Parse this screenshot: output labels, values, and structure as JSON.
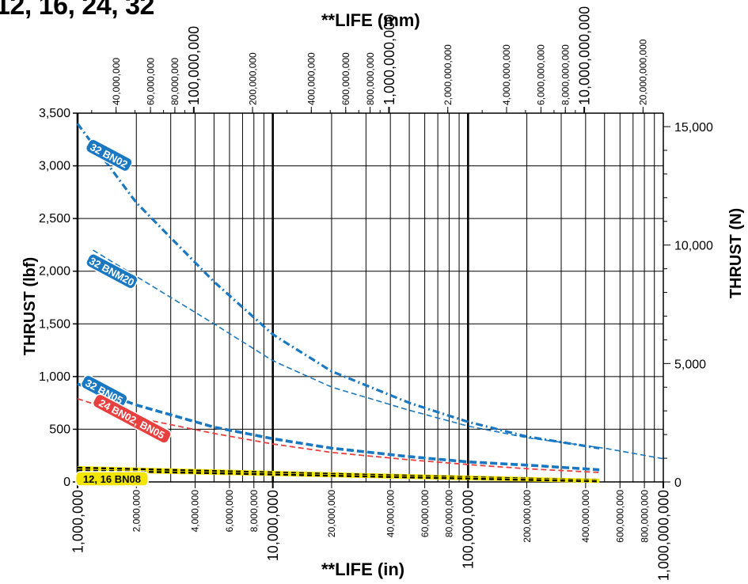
{
  "title_fragment": "12, 16, 24, 32",
  "colors": {
    "blue": "#1a78c2",
    "red": "#e8403f",
    "yellow": "#f2e600",
    "grid": "#000000"
  },
  "chart_data": {
    "type": "line",
    "x_scale": "log",
    "bottom_axis": {
      "title": "**LIFE (in)",
      "range": [
        1000000,
        1000000000
      ],
      "ticks": [
        {
          "value": 1000000,
          "label": "1,000,000",
          "major": true
        },
        {
          "value": 2000000,
          "label": "2,000,000",
          "major": false
        },
        {
          "value": 4000000,
          "label": "4,000,000",
          "major": false
        },
        {
          "value": 6000000,
          "label": "6,000,000",
          "major": false
        },
        {
          "value": 8000000,
          "label": "8,000,000",
          "major": false
        },
        {
          "value": 10000000,
          "label": "10,000,000",
          "major": true
        },
        {
          "value": 20000000,
          "label": "20,000,000",
          "major": false
        },
        {
          "value": 40000000,
          "label": "40,000,000",
          "major": false
        },
        {
          "value": 60000000,
          "label": "60,000,000",
          "major": false
        },
        {
          "value": 80000000,
          "label": "80,000,000",
          "major": false
        },
        {
          "value": 100000000,
          "label": "100,000,000",
          "major": true
        },
        {
          "value": 200000000,
          "label": "200,000,000",
          "major": false
        },
        {
          "value": 400000000,
          "label": "400,000,000",
          "major": false
        },
        {
          "value": 600000000,
          "label": "600,000,000",
          "major": false
        },
        {
          "value": 800000000,
          "label": "800,000,000",
          "major": false
        },
        {
          "value": 1000000000,
          "label": "1,000,000,000",
          "major": true
        }
      ]
    },
    "top_axis": {
      "title": "**LIFE (mm)",
      "ticks": [
        {
          "value": 40000000,
          "label": "40,000,000",
          "major": false
        },
        {
          "value": 60000000,
          "label": "60,000,000",
          "major": false
        },
        {
          "value": 80000000,
          "label": "80,000,000",
          "major": false
        },
        {
          "value": 100000000,
          "label": "100,000,000",
          "major": true
        },
        {
          "value": 200000000,
          "label": "200,000,000",
          "major": false
        },
        {
          "value": 400000000,
          "label": "400,000,000",
          "major": false
        },
        {
          "value": 600000000,
          "label": "600,000,000",
          "major": false
        },
        {
          "value": 800000000,
          "label": "800,000,000",
          "major": false
        },
        {
          "value": 1000000000,
          "label": "1,000,000,000",
          "major": true
        },
        {
          "value": 2000000000,
          "label": "2,000,000,000",
          "major": false
        },
        {
          "value": 4000000000,
          "label": "4,000,000,000",
          "major": false
        },
        {
          "value": 6000000000,
          "label": "6,000,000,000",
          "major": false
        },
        {
          "value": 8000000000,
          "label": "8,000,000,000",
          "major": false
        },
        {
          "value": 10000000000,
          "label": "10,000,000,000",
          "major": true
        },
        {
          "value": 20000000000,
          "label": "20,000,000,000",
          "major": false
        }
      ]
    },
    "left_axis": {
      "title": "THRUST (lbf)",
      "range": [
        0,
        3500
      ],
      "ticks": [
        {
          "value": 0,
          "label": "0"
        },
        {
          "value": 500,
          "label": "500"
        },
        {
          "value": 1000,
          "label": "1,000"
        },
        {
          "value": 1500,
          "label": "1,500"
        },
        {
          "value": 2000,
          "label": "2,000"
        },
        {
          "value": 2500,
          "label": "2,500"
        },
        {
          "value": 3000,
          "label": "3,000"
        },
        {
          "value": 3500,
          "label": "3,500"
        }
      ]
    },
    "right_axis": {
      "title": "THRUST (N)",
      "range": [
        0,
        15569
      ],
      "ticks": [
        {
          "value": 0,
          "label": "0"
        },
        {
          "value": 5000,
          "label": "5,000"
        },
        {
          "value": 10000,
          "label": "10,000"
        },
        {
          "value": 15000,
          "label": "15,000"
        }
      ]
    },
    "series": [
      {
        "name": "32 BN02",
        "color": "#1a78c2",
        "style": "dashdot",
        "label_at": {
          "x": 1450000,
          "y": 3100
        },
        "points": [
          [
            1000000,
            3400
          ],
          [
            2000000,
            2650
          ],
          [
            5000000,
            1900
          ],
          [
            10000000,
            1400
          ],
          [
            20000000,
            1050
          ],
          [
            50000000,
            750
          ],
          [
            100000000,
            570
          ],
          [
            200000000,
            430
          ],
          [
            470000000,
            320
          ]
        ]
      },
      {
        "name": "32 BNM20",
        "color": "#1a78c2",
        "style": "thin-dash",
        "label_at": {
          "x": 1500000,
          "y": 2000
        },
        "points": [
          [
            1200000,
            2200
          ],
          [
            2000000,
            1950
          ],
          [
            5000000,
            1500
          ],
          [
            10000000,
            1150
          ],
          [
            20000000,
            900
          ],
          [
            50000000,
            680
          ],
          [
            100000000,
            530
          ],
          [
            200000000,
            420
          ],
          [
            500000000,
            320
          ],
          [
            1000000000,
            220
          ]
        ]
      },
      {
        "name": "32 BN05",
        "color": "#1a78c2",
        "style": "thick-dash",
        "label_at": {
          "x": 1370000,
          "y": 860
        },
        "points": [
          [
            1000000,
            930
          ],
          [
            2000000,
            730
          ],
          [
            5000000,
            520
          ],
          [
            10000000,
            410
          ],
          [
            20000000,
            320
          ],
          [
            50000000,
            240
          ],
          [
            100000000,
            190
          ],
          [
            200000000,
            160
          ],
          [
            470000000,
            115
          ]
        ]
      },
      {
        "name": "24 BN02, BN05",
        "color": "#e8403f",
        "style": "dash",
        "label_at": {
          "x": 1900000,
          "y": 600
        },
        "points": [
          [
            1000000,
            790
          ],
          [
            2000000,
            610
          ],
          [
            5000000,
            460
          ],
          [
            10000000,
            360
          ],
          [
            20000000,
            280
          ],
          [
            50000000,
            210
          ],
          [
            100000000,
            165
          ],
          [
            200000000,
            125
          ],
          [
            470000000,
            90
          ]
        ]
      },
      {
        "name": "12, 16 BN08",
        "color": "#f2e600",
        "style": "yellow-black",
        "label_at": {
          "x": 1500000,
          "y": 30
        },
        "points": [
          [
            1000000,
            135
          ],
          [
            470000000,
            15
          ]
        ]
      },
      {
        "name": "",
        "color": "#f2e600",
        "style": "yellow-black",
        "points": [
          [
            1000000,
            110
          ],
          [
            470000000,
            5
          ]
        ]
      }
    ]
  }
}
